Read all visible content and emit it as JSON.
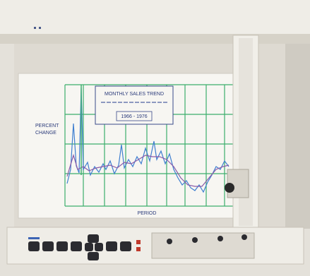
{
  "plot": {
    "title": "MONTHLY SALES TREND",
    "years": "1966 - 1976",
    "y_label": [
      "PERCENT",
      "CHANGE"
    ],
    "x_label": "PERIOD"
  }
}
